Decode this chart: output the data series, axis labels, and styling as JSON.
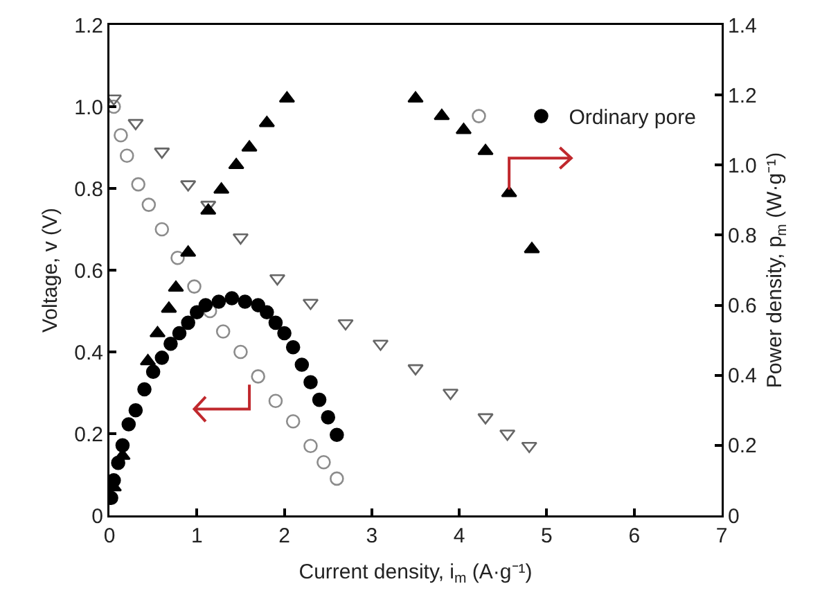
{
  "chart_data": {
    "type": "scatter",
    "xlabel": "Current density, i$_{m}$ (A·g⁻¹)",
    "ylabel": "Voltage, v (V)",
    "y2label": "Power density, p$_{m}$ (W·g⁻¹)",
    "xlim": [
      0,
      7
    ],
    "xticks": [
      0,
      1,
      2,
      3,
      4,
      5,
      6,
      7
    ],
    "ylim": [
      0,
      1.2
    ],
    "yticks": [
      0,
      0.2,
      0.4,
      0.6,
      0.8,
      {
        "value": 1,
        "label": "1.0"
      },
      1.2
    ],
    "y2lim": [
      0,
      1.4
    ],
    "y2ticks": [
      0,
      0.2,
      0.4,
      0.6,
      0.8,
      {
        "value": 1,
        "label": "1.0"
      },
      1.2,
      1.4
    ],
    "grid": false,
    "legend": "top right",
    "series": [
      {
        "color": "#8c8c8c",
        "marker": "circle",
        "axis": "y",
        "x": [
          0.05,
          0.13,
          0.2,
          0.33,
          0.45,
          0.6,
          0.78,
          0.97,
          1.15,
          1.3,
          1.5,
          1.7,
          1.9,
          2.1,
          2.3,
          2.45,
          2.6
        ],
        "values": [
          1.0,
          0.93,
          0.88,
          0.81,
          0.76,
          0.7,
          0.63,
          0.56,
          0.5,
          0.45,
          0.4,
          0.34,
          0.28,
          0.23,
          0.17,
          0.13,
          0.09
        ]
      },
      {
        "name": "Ordinary pore",
        "color": "#000000",
        "marker": "circle",
        "axis": "y2",
        "x": [
          0.02,
          0.05,
          0.1,
          0.15,
          0.22,
          0.3,
          0.4,
          0.5,
          0.6,
          0.7,
          0.8,
          0.9,
          1.0,
          1.1,
          1.25,
          1.4,
          1.55,
          1.7,
          1.8,
          1.9,
          2.0,
          2.1,
          2.2,
          2.3,
          2.4,
          2.5,
          2.6
        ],
        "values": [
          0.05,
          0.1,
          0.15,
          0.2,
          0.26,
          0.3,
          0.36,
          0.41,
          0.45,
          0.49,
          0.52,
          0.55,
          0.58,
          0.6,
          0.61,
          0.62,
          0.61,
          0.6,
          0.58,
          0.55,
          0.52,
          0.48,
          0.43,
          0.38,
          0.33,
          0.28,
          0.23
        ]
      },
      {
        "color": "#666666",
        "marker": "triangle",
        "axis": "y",
        "x": [
          0.05,
          0.3,
          0.6,
          0.9,
          1.13,
          1.5,
          1.92,
          2.3,
          2.7,
          3.1,
          3.5,
          3.9,
          4.3,
          4.55,
          4.8
        ],
        "values": [
          1.02,
          0.96,
          0.89,
          0.81,
          0.76,
          0.68,
          0.58,
          0.52,
          0.47,
          0.42,
          0.36,
          0.3,
          0.24,
          0.2,
          0.17
        ]
      },
      {
        "color": "#000000",
        "marker": "triangle",
        "axis": "y2",
        "x": [
          0.05,
          0.15,
          0.3,
          0.44,
          0.55,
          0.68,
          0.76,
          0.9,
          1.13,
          1.28,
          1.45,
          1.6,
          1.8,
          2.03,
          2.75,
          3.5,
          3.8,
          4.05,
          4.3,
          4.57,
          4.83
        ],
        "values": [
          0.08,
          0.17,
          null,
          0.44,
          0.52,
          0.59,
          0.65,
          0.75,
          0.87,
          0.93,
          1.0,
          1.05,
          1.12,
          1.19,
          null,
          1.19,
          1.14,
          1.1,
          1.04,
          0.92,
          0.76
        ]
      }
    ]
  }
}
